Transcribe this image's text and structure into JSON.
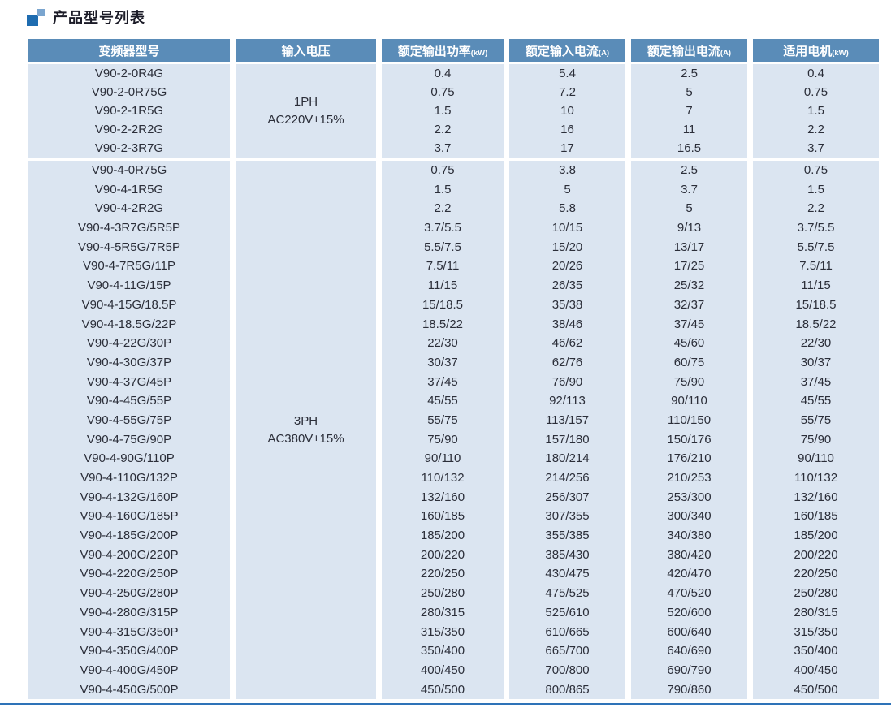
{
  "page_title": "产品型号列表",
  "colors": {
    "header_bg": "#5a8cb8",
    "row_bg": "#dbe5f1",
    "accent_dark": "#1e6cb0",
    "accent_light": "#7aa5cf",
    "bottom_rule": "#2e73b8"
  },
  "table": {
    "headers": [
      {
        "label": "变频器型号",
        "unit": ""
      },
      {
        "label": "输入电压",
        "unit": ""
      },
      {
        "label": "额定输出功率",
        "unit": "(kW)"
      },
      {
        "label": "额定输入电流",
        "unit": "(A)"
      },
      {
        "label": "额定输出电流",
        "unit": "(A)"
      },
      {
        "label": "适用电机",
        "unit": "(kW)"
      }
    ],
    "groups": [
      {
        "voltage_lines": [
          "1PH",
          "AC220V±15%"
        ],
        "models": [
          "V90-2-0R4G",
          "V90-2-0R75G",
          "V90-2-1R5G",
          "V90-2-2R2G",
          "V90-2-3R7G"
        ],
        "power": [
          "0.4",
          "0.75",
          "1.5",
          "2.2",
          "3.7"
        ],
        "input_current": [
          "5.4",
          "7.2",
          "10",
          "16",
          "17"
        ],
        "output_current": [
          "2.5",
          "5",
          "7",
          "11",
          "16.5"
        ],
        "motor": [
          "0.4",
          "0.75",
          "1.5",
          "2.2",
          "3.7"
        ]
      },
      {
        "voltage_lines": [
          "3PH",
          "AC380V±15%"
        ],
        "models": [
          "V90-4-0R75G",
          "V90-4-1R5G",
          "V90-4-2R2G",
          "V90-4-3R7G/5R5P",
          "V90-4-5R5G/7R5P",
          "V90-4-7R5G/11P",
          "V90-4-11G/15P",
          "V90-4-15G/18.5P",
          "V90-4-18.5G/22P",
          "V90-4-22G/30P",
          "V90-4-30G/37P",
          "V90-4-37G/45P",
          "V90-4-45G/55P",
          "V90-4-55G/75P",
          "V90-4-75G/90P",
          "V90-4-90G/110P",
          "V90-4-110G/132P",
          "V90-4-132G/160P",
          "V90-4-160G/185P",
          "V90-4-185G/200P",
          "V90-4-200G/220P",
          "V90-4-220G/250P",
          "V90-4-250G/280P",
          "V90-4-280G/315P",
          "V90-4-315G/350P",
          "V90-4-350G/400P",
          "V90-4-400G/450P",
          "V90-4-450G/500P"
        ],
        "power": [
          "0.75",
          "1.5",
          "2.2",
          "3.7/5.5",
          "5.5/7.5",
          "7.5/11",
          "11/15",
          "15/18.5",
          "18.5/22",
          "22/30",
          "30/37",
          "37/45",
          "45/55",
          "55/75",
          "75/90",
          "90/110",
          "110/132",
          "132/160",
          "160/185",
          "185/200",
          "200/220",
          "220/250",
          "250/280",
          "280/315",
          "315/350",
          "350/400",
          "400/450",
          "450/500"
        ],
        "input_current": [
          "3.8",
          "5",
          "5.8",
          "10/15",
          "15/20",
          "20/26",
          "26/35",
          "35/38",
          "38/46",
          "46/62",
          "62/76",
          "76/90",
          "92/113",
          "113/157",
          "157/180",
          "180/214",
          "214/256",
          "256/307",
          "307/355",
          "355/385",
          "385/430",
          "430/475",
          "475/525",
          "525/610",
          "610/665",
          "665/700",
          "700/800",
          "800/865"
        ],
        "output_current": [
          "2.5",
          "3.7",
          "5",
          "9/13",
          "13/17",
          "17/25",
          "25/32",
          "32/37",
          "37/45",
          "45/60",
          "60/75",
          "75/90",
          "90/110",
          "110/150",
          "150/176",
          "176/210",
          "210/253",
          "253/300",
          "300/340",
          "340/380",
          "380/420",
          "420/470",
          "470/520",
          "520/600",
          "600/640",
          "640/690",
          "690/790",
          "790/860"
        ],
        "motor": [
          "0.75",
          "1.5",
          "2.2",
          "3.7/5.5",
          "5.5/7.5",
          "7.5/11",
          "11/15",
          "15/18.5",
          "18.5/22",
          "22/30",
          "30/37",
          "37/45",
          "45/55",
          "55/75",
          "75/90",
          "90/110",
          "110/132",
          "132/160",
          "160/185",
          "185/200",
          "200/220",
          "220/250",
          "250/280",
          "280/315",
          "315/350",
          "350/400",
          "400/450",
          "450/500"
        ]
      }
    ]
  }
}
